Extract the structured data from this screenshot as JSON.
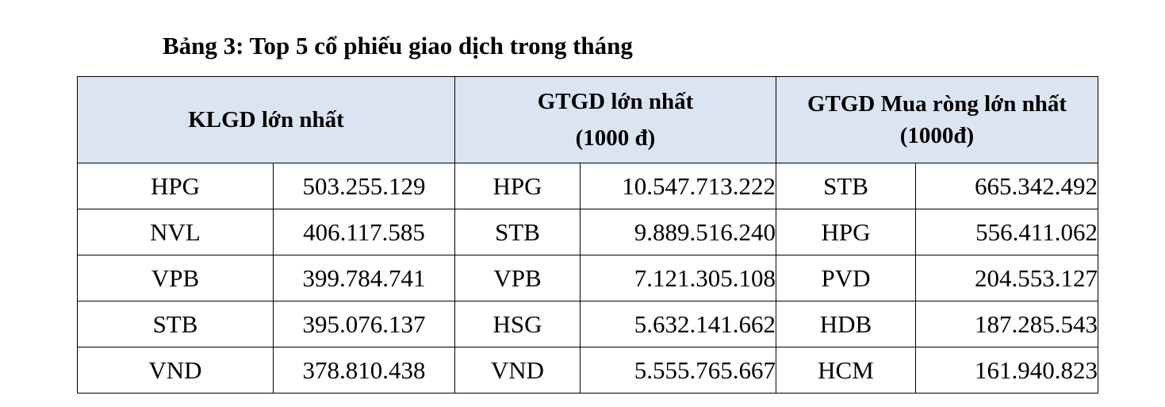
{
  "caption": "Bảng 3: Top 5 cổ phiếu giao dịch trong tháng",
  "headers": {
    "col1": {
      "line1": "KLGD lớn nhất"
    },
    "col2": {
      "line1": "GTGD lớn nhất",
      "line2": "(1000 đ)"
    },
    "col3": {
      "line1": "GTGD Mua ròng lớn nhất",
      "line2": "(1000đ)"
    }
  },
  "rows": [
    {
      "klgd_symbol": "HPG",
      "klgd_value": "503.255.129",
      "gtgd_symbol": "HPG",
      "gtgd_value": "10.547.713.222",
      "net_symbol": "STB",
      "net_value": "665.342.492"
    },
    {
      "klgd_symbol": "NVL",
      "klgd_value": "406.117.585",
      "gtgd_symbol": "STB",
      "gtgd_value": "9.889.516.240",
      "net_symbol": "HPG",
      "net_value": "556.411.062"
    },
    {
      "klgd_symbol": "VPB",
      "klgd_value": "399.784.741",
      "gtgd_symbol": "VPB",
      "gtgd_value": "7.121.305.108",
      "net_symbol": "PVD",
      "net_value": "204.553.127"
    },
    {
      "klgd_symbol": "STB",
      "klgd_value": "395.076.137",
      "gtgd_symbol": "HSG",
      "gtgd_value": "5.632.141.662",
      "net_symbol": "HDB",
      "net_value": "187.285.543"
    },
    {
      "klgd_symbol": "VND",
      "klgd_value": "378.810.438",
      "gtgd_symbol": "VND",
      "gtgd_value": "5.555.765.667",
      "net_symbol": "HCM",
      "net_value": "161.940.823"
    }
  ]
}
